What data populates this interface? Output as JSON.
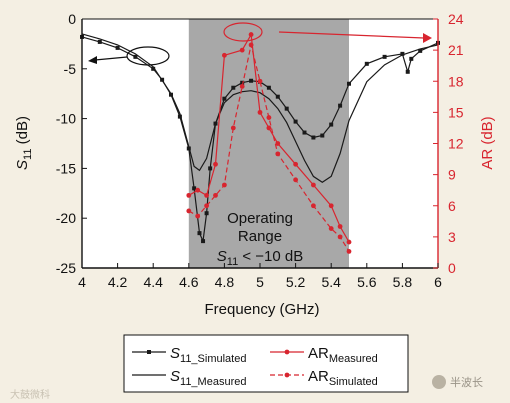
{
  "colors": {
    "s11": "#1a1a1a",
    "ar": "#d8252f",
    "band": "#a8a8a8",
    "plot_bg": "#ffffff"
  },
  "chart_data": {
    "type": "line",
    "xlabel": "Frequency (GHz)",
    "ylabel_left": "S11 (dB)",
    "ylabel_right": "AR (dB)",
    "xlim": [
      4,
      6
    ],
    "ylim_left": [
      -25,
      0
    ],
    "ylim_right": [
      0,
      24
    ],
    "x_ticks": [
      "4",
      "4.2",
      "4.4",
      "4.6",
      "4.8",
      "5",
      "5.2",
      "5.4",
      "5.6",
      "5.8",
      "6"
    ],
    "y_ticks_left": [
      "0",
      "-5",
      "-10",
      "-15",
      "-20",
      "-25"
    ],
    "y_ticks_right": [
      "24",
      "21",
      "18",
      "15",
      "12",
      "9",
      "6",
      "3",
      "0"
    ],
    "band": {
      "x": [
        4.6,
        5.5
      ],
      "label_lines": [
        "Operating",
        "Range",
        "S11 < −10 dB"
      ]
    },
    "grid": false,
    "legend_position": "bottom",
    "series": [
      {
        "name": "S11_Simulated",
        "axis": "left",
        "style": "solid-square",
        "x": [
          4.0,
          4.1,
          4.2,
          4.3,
          4.4,
          4.45,
          4.5,
          4.55,
          4.6,
          4.63,
          4.66,
          4.68,
          4.7,
          4.72,
          4.75,
          4.8,
          4.85,
          4.9,
          4.95,
          5.0,
          5.05,
          5.1,
          5.15,
          5.2,
          5.25,
          5.3,
          5.35,
          5.4,
          5.45,
          5.5,
          5.6,
          5.7,
          5.8,
          5.83,
          5.85,
          5.9,
          6.0
        ],
        "y": [
          -1.8,
          -2.3,
          -2.9,
          -3.8,
          -5.0,
          -6.1,
          -7.6,
          -9.8,
          -13.0,
          -17.0,
          -21.5,
          -22.3,
          -19.5,
          -15.0,
          -10.5,
          -8.0,
          -6.9,
          -6.4,
          -6.2,
          -6.3,
          -6.9,
          -7.8,
          -9.0,
          -10.3,
          -11.4,
          -11.9,
          -11.7,
          -10.6,
          -8.7,
          -6.5,
          -4.5,
          -3.8,
          -3.5,
          -5.3,
          -4.0,
          -3.2,
          -2.4
        ]
      },
      {
        "name": "S11_Measured",
        "axis": "left",
        "style": "solid",
        "x": [
          4.0,
          4.1,
          4.2,
          4.3,
          4.4,
          4.5,
          4.55,
          4.6,
          4.63,
          4.66,
          4.7,
          4.75,
          4.8,
          4.85,
          4.9,
          4.95,
          5.0,
          5.05,
          5.1,
          5.15,
          5.2,
          5.25,
          5.3,
          5.35,
          5.4,
          5.45,
          5.5,
          5.6,
          5.7,
          5.8,
          5.9,
          6.0
        ],
        "y": [
          -1.5,
          -2.0,
          -2.6,
          -3.5,
          -4.8,
          -7.5,
          -9.5,
          -12.8,
          -14.8,
          -15.2,
          -14.0,
          -10.5,
          -8.4,
          -7.6,
          -7.3,
          -7.2,
          -7.4,
          -8.0,
          -9.0,
          -10.4,
          -12.3,
          -14.2,
          -15.8,
          -16.4,
          -15.8,
          -13.5,
          -10.2,
          -6.3,
          -4.6,
          -3.6,
          -3.0,
          -2.6
        ]
      },
      {
        "name": "AR_Measured",
        "axis": "right",
        "style": "solid-dot",
        "x": [
          4.6,
          4.65,
          4.7,
          4.75,
          4.8,
          4.9,
          4.95,
          5.0,
          5.05,
          5.1,
          5.2,
          5.3,
          5.4,
          5.45,
          5.5
        ],
        "y": [
          7.0,
          7.5,
          7.0,
          10.0,
          20.5,
          21.0,
          22.5,
          15.0,
          13.5,
          12.0,
          10.0,
          8.0,
          6.0,
          4.0,
          2.5
        ]
      },
      {
        "name": "AR_Simulated",
        "axis": "right",
        "style": "dashed-dot",
        "x": [
          4.6,
          4.65,
          4.7,
          4.75,
          4.8,
          4.85,
          4.9,
          4.95,
          5.0,
          5.05,
          5.1,
          5.2,
          5.3,
          5.4,
          5.45,
          5.5
        ],
        "y": [
          5.5,
          5.0,
          6.0,
          7.0,
          8.0,
          13.5,
          17.5,
          21.5,
          18.0,
          14.5,
          11.0,
          8.5,
          6.0,
          3.8,
          3.0,
          1.6
        ]
      }
    ],
    "legend": [
      {
        "name": "S11",
        "subscript": "_Simulated",
        "style": "solid-square"
      },
      {
        "name": "AR",
        "subscript": "Measured",
        "style": "solid-dot"
      },
      {
        "name": "S11",
        "subscript": "_Measured",
        "style": "solid"
      },
      {
        "name": "AR",
        "subscript": "Simulated",
        "style": "dashed-dot"
      }
    ]
  },
  "watermarks": {
    "left": "大鼓微科",
    "right": "半波长"
  }
}
